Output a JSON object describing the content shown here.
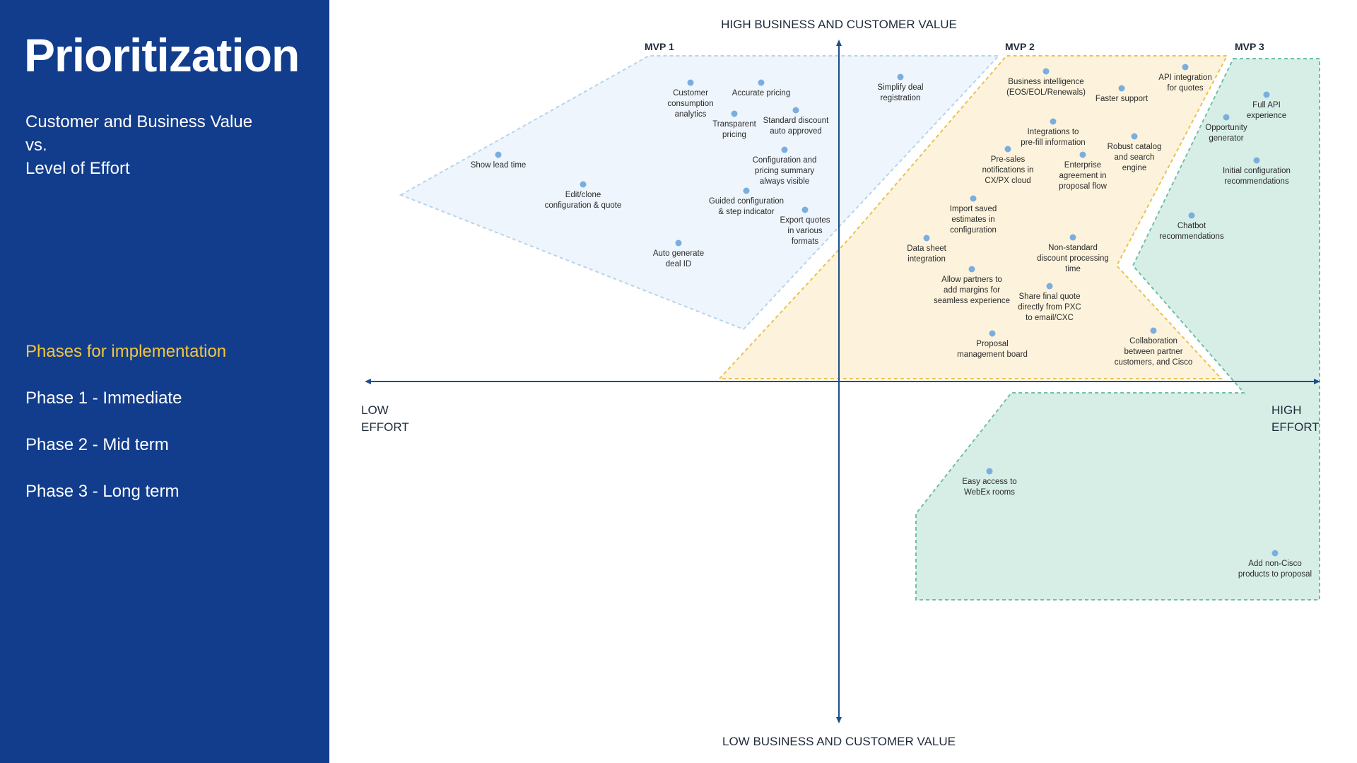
{
  "sidebar": {
    "title": "Prioritization",
    "subtitle": [
      "Customer and Business Value",
      "vs.",
      "Level of Effort"
    ],
    "phases_heading": "Phases for implementation",
    "phases": [
      "Phase 1 - Immediate",
      "Phase 2 - Mid term",
      "Phase 3 - Long term"
    ]
  },
  "axes": {
    "top": "HIGH BUSINESS AND CUSTOMER VALUE",
    "bottom": "LOW BUSINESS AND CUSTOMER VALUE",
    "left": [
      "LOW",
      "EFFORT"
    ],
    "right": [
      "HIGH",
      "EFFORT"
    ]
  },
  "colors": {
    "sidebar_bg": "#123d8c",
    "phase_heading": "#f3c63c",
    "axis": "#1e4f86",
    "dot": "#7aaedf",
    "mvp1_fill": "#eef5fc",
    "mvp1_border": "#b7d4ea",
    "mvp2_fill": "#fdf3dc",
    "mvp2_border": "#eac24e",
    "mvp3_fill": "#d7eee7",
    "mvp3_border": "#6fbfa8"
  },
  "regions": [
    {
      "id": "mvp1",
      "label": "MVP 1"
    },
    {
      "id": "mvp2",
      "label": "MVP 2"
    },
    {
      "id": "mvp3",
      "label": "MVP 3"
    }
  ],
  "features": [
    {
      "mvp": "mvp1",
      "lines": [
        "Show lead time"
      ]
    },
    {
      "mvp": "mvp1",
      "lines": [
        "Edit/clone",
        "configuration & quote"
      ]
    },
    {
      "mvp": "mvp1",
      "lines": [
        "Customer",
        "consumption",
        "analytics"
      ]
    },
    {
      "mvp": "mvp1",
      "lines": [
        "Accurate pricing"
      ]
    },
    {
      "mvp": "mvp1",
      "lines": [
        "Transparent",
        "pricing"
      ]
    },
    {
      "mvp": "mvp1",
      "lines": [
        "Standard discount",
        "auto approved"
      ]
    },
    {
      "mvp": "mvp1",
      "lines": [
        "Configuration and",
        "pricing summary",
        "always visible"
      ]
    },
    {
      "mvp": "mvp1",
      "lines": [
        "Guided configuration",
        "& step indicator"
      ]
    },
    {
      "mvp": "mvp1",
      "lines": [
        "Export quotes",
        "in various",
        "formats"
      ]
    },
    {
      "mvp": "mvp1",
      "lines": [
        "Auto generate",
        "deal ID"
      ]
    },
    {
      "mvp": "mvp1",
      "lines": [
        "Simplify deal",
        "registration"
      ]
    },
    {
      "mvp": "mvp2",
      "lines": [
        "Business intelligence",
        "(EOS/EOL/Renewals)"
      ]
    },
    {
      "mvp": "mvp2",
      "lines": [
        "Faster support"
      ]
    },
    {
      "mvp": "mvp2",
      "lines": [
        "API integration",
        "for quotes"
      ]
    },
    {
      "mvp": "mvp2",
      "lines": [
        "Integrations to",
        "pre-fill information"
      ]
    },
    {
      "mvp": "mvp2",
      "lines": [
        "Robust catalog",
        "and search",
        "engine"
      ]
    },
    {
      "mvp": "mvp2",
      "lines": [
        "Pre-sales",
        "notifications in",
        "CX/PX cloud"
      ]
    },
    {
      "mvp": "mvp2",
      "lines": [
        "Enterprise",
        "agreement in",
        "proposal flow"
      ]
    },
    {
      "mvp": "mvp2",
      "lines": [
        "Import saved",
        "estimates in",
        "configuration"
      ]
    },
    {
      "mvp": "mvp2",
      "lines": [
        "Data sheet",
        "integration"
      ]
    },
    {
      "mvp": "mvp2",
      "lines": [
        "Non-standard",
        "discount processing",
        "time"
      ]
    },
    {
      "mvp": "mvp2",
      "lines": [
        "Allow partners to",
        "add margins for",
        "seamless experience"
      ]
    },
    {
      "mvp": "mvp2",
      "lines": [
        "Share final quote",
        "directly from PXC",
        "to email/CXC"
      ]
    },
    {
      "mvp": "mvp2",
      "lines": [
        "Proposal",
        "management board"
      ]
    },
    {
      "mvp": "mvp2",
      "lines": [
        "Collaboration",
        "between partner",
        "customers, and Cisco"
      ]
    },
    {
      "mvp": "mvp3",
      "lines": [
        "Full API",
        "experience"
      ]
    },
    {
      "mvp": "mvp3",
      "lines": [
        "Opportunity",
        "generator"
      ]
    },
    {
      "mvp": "mvp3",
      "lines": [
        "Initial configuration",
        "recommendations"
      ]
    },
    {
      "mvp": "mvp3",
      "lines": [
        "Chatbot",
        "recommendations"
      ]
    },
    {
      "mvp": "mvp3",
      "lines": [
        "Easy access to",
        "WebEx rooms"
      ]
    },
    {
      "mvp": "mvp3",
      "lines": [
        "Add non-Cisco",
        "products to proposal"
      ]
    }
  ]
}
